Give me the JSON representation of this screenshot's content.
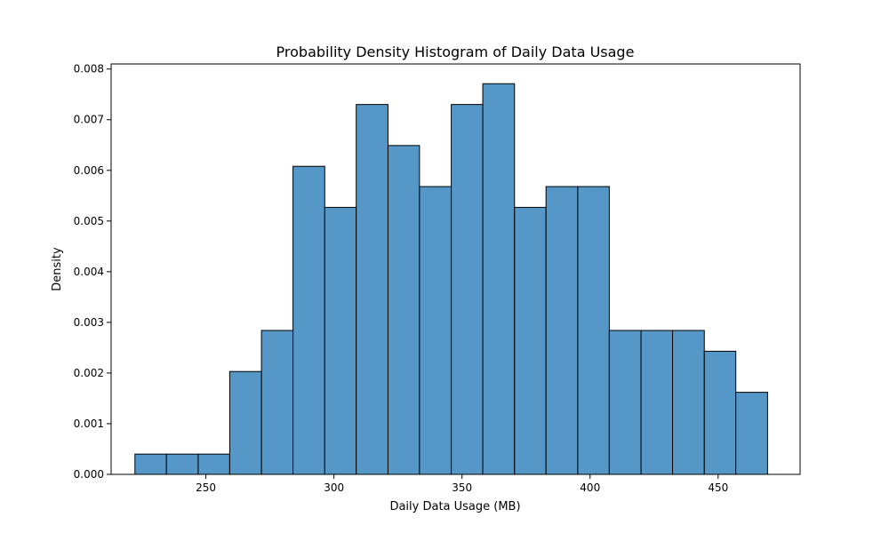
{
  "chart_data": {
    "type": "bar",
    "subtype": "histogram",
    "title": "Probability Density Histogram of Daily Data Usage",
    "xlabel": "Daily Data Usage (MB)",
    "ylabel": "Density",
    "xlim": [
      213,
      482
    ],
    "ylim": [
      0,
      0.0081
    ],
    "xticks": [
      250,
      300,
      350,
      400,
      450
    ],
    "yticks": [
      0.0,
      0.001,
      0.002,
      0.003,
      0.004,
      0.005,
      0.006,
      0.007,
      0.008
    ],
    "ytick_labels": [
      "0.000",
      "0.001",
      "0.002",
      "0.003",
      "0.004",
      "0.005",
      "0.006",
      "0.007",
      "0.008"
    ],
    "bin_edges": [
      222.3,
      234.6,
      247.0,
      259.3,
      271.7,
      284.0,
      296.4,
      308.7,
      321.1,
      333.4,
      345.8,
      358.1,
      370.5,
      382.8,
      395.2,
      407.5,
      419.9,
      432.2,
      444.6,
      456.9,
      469.3
    ],
    "values": [
      0.0004,
      0.0004,
      0.0004,
      0.00203,
      0.00284,
      0.00608,
      0.00527,
      0.0073,
      0.00649,
      0.00568,
      0.0073,
      0.00771,
      0.00527,
      0.00568,
      0.00568,
      0.00284,
      0.00284,
      0.00284,
      0.00243,
      0.00162
    ],
    "bar_color": "#5597c6",
    "edge_color": "#000000",
    "grid": false,
    "legend": "none"
  }
}
